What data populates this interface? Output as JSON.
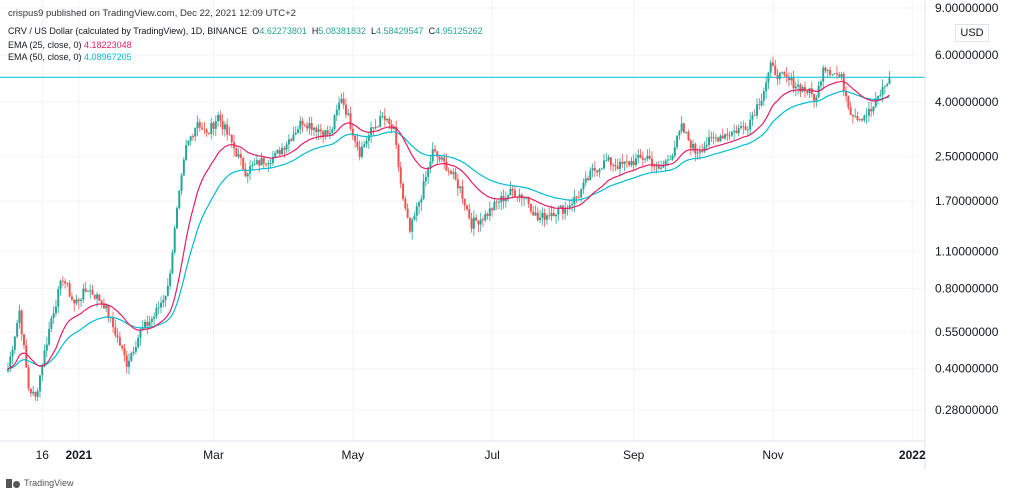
{
  "header": {
    "published": "crispus9 published on TradingView.com, Dec 22, 2021 12:09 UTC+2",
    "symbol_line": "CRV / US Dollar (calculated by TradingView), 1D, BINANCE",
    "ohlc": {
      "o_label": "O",
      "o": "4.62273801",
      "h_label": "H",
      "h": "5.08381832",
      "l_label": "L",
      "l": "4.58429547",
      "c_label": "C",
      "c": "4.95125262"
    },
    "ema25_label": "EMA (25, close, 0)",
    "ema25_value": "4.18223048",
    "ema50_label": "EMA (50, close, 0)",
    "ema50_value": "4.08967205"
  },
  "axis": {
    "currency": "USD"
  },
  "footer": {
    "brand": "TradingView"
  },
  "colors": {
    "up": "#26a69a",
    "down": "#ef5350",
    "ema25": "#e91e63",
    "ema50": "#00bcd4",
    "grid": "#f0f3fa"
  },
  "chart_data": {
    "type": "candlestick",
    "y_scale": "log",
    "ylim": [
      0.22,
      9.0
    ],
    "y_ticks": [
      {
        "value": 9.0,
        "label": "9.00000000"
      },
      {
        "value": 6.0,
        "label": "6.00000000"
      },
      {
        "value": 4.0,
        "label": "4.00000000"
      },
      {
        "value": 2.5,
        "label": "2.50000000"
      },
      {
        "value": 1.7,
        "label": "1.70000000"
      },
      {
        "value": 1.1,
        "label": "1.10000000"
      },
      {
        "value": 0.8,
        "label": "0.80000000"
      },
      {
        "value": 0.55,
        "label": "0.55000000"
      },
      {
        "value": 0.4,
        "label": "0.40000000"
      },
      {
        "value": 0.28,
        "label": "0.28000000"
      }
    ],
    "x_range": [
      "2020-12-01",
      "2021-12-31"
    ],
    "x_ticks": [
      {
        "date": "2020-12-16",
        "label": "16"
      },
      {
        "date": "2021-01-01",
        "label": "2021"
      },
      {
        "date": "2021-03-01",
        "label": "Mar"
      },
      {
        "date": "2021-05-01",
        "label": "May"
      },
      {
        "date": "2021-07-01",
        "label": "Jul"
      },
      {
        "date": "2021-09-01",
        "label": "Sep"
      },
      {
        "date": "2021-11-01",
        "label": "Nov"
      },
      {
        "date": "2022-01-01",
        "label": "2022"
      }
    ],
    "horizontal_line": 4.95,
    "anchors": [
      {
        "date": "2020-12-01",
        "close": 0.4
      },
      {
        "date": "2020-12-06",
        "close": 0.66
      },
      {
        "date": "2020-12-10",
        "close": 0.34
      },
      {
        "date": "2020-12-13",
        "close": 0.31
      },
      {
        "date": "2020-12-20",
        "close": 0.62
      },
      {
        "date": "2020-12-25",
        "close": 0.88
      },
      {
        "date": "2020-12-30",
        "close": 0.7
      },
      {
        "date": "2021-01-05",
        "close": 0.8
      },
      {
        "date": "2021-01-12",
        "close": 0.7
      },
      {
        "date": "2021-01-18",
        "close": 0.52
      },
      {
        "date": "2021-01-22",
        "close": 0.42
      },
      {
        "date": "2021-01-28",
        "close": 0.55
      },
      {
        "date": "2021-02-03",
        "close": 0.63
      },
      {
        "date": "2021-02-09",
        "close": 0.8
      },
      {
        "date": "2021-02-13",
        "close": 1.55
      },
      {
        "date": "2021-02-17",
        "close": 2.7
      },
      {
        "date": "2021-02-22",
        "close": 3.4
      },
      {
        "date": "2021-02-26",
        "close": 3.0
      },
      {
        "date": "2021-03-03",
        "close": 3.55
      },
      {
        "date": "2021-03-09",
        "close": 2.8
      },
      {
        "date": "2021-03-15",
        "close": 2.2
      },
      {
        "date": "2021-03-22",
        "close": 2.4
      },
      {
        "date": "2021-03-28",
        "close": 2.5
      },
      {
        "date": "2021-04-03",
        "close": 2.9
      },
      {
        "date": "2021-04-09",
        "close": 3.4
      },
      {
        "date": "2021-04-15",
        "close": 3.2
      },
      {
        "date": "2021-04-21",
        "close": 3.0
      },
      {
        "date": "2021-04-26",
        "close": 4.2
      },
      {
        "date": "2021-04-30",
        "close": 3.3
      },
      {
        "date": "2021-05-04",
        "close": 2.6
      },
      {
        "date": "2021-05-09",
        "close": 3.1
      },
      {
        "date": "2021-05-14",
        "close": 3.5
      },
      {
        "date": "2021-05-19",
        "close": 3.1
      },
      {
        "date": "2021-05-23",
        "close": 1.7
      },
      {
        "date": "2021-05-26",
        "close": 1.3
      },
      {
        "date": "2021-05-31",
        "close": 1.8
      },
      {
        "date": "2021-06-05",
        "close": 2.6
      },
      {
        "date": "2021-06-11",
        "close": 2.3
      },
      {
        "date": "2021-06-17",
        "close": 1.9
      },
      {
        "date": "2021-06-22",
        "close": 1.4
      },
      {
        "date": "2021-06-28",
        "close": 1.5
      },
      {
        "date": "2021-07-04",
        "close": 1.7
      },
      {
        "date": "2021-07-10",
        "close": 1.85
      },
      {
        "date": "2021-07-16",
        "close": 1.75
      },
      {
        "date": "2021-07-21",
        "close": 1.45
      },
      {
        "date": "2021-07-27",
        "close": 1.55
      },
      {
        "date": "2021-08-02",
        "close": 1.6
      },
      {
        "date": "2021-08-08",
        "close": 1.8
      },
      {
        "date": "2021-08-14",
        "close": 2.2
      },
      {
        "date": "2021-08-20",
        "close": 2.4
      },
      {
        "date": "2021-08-26",
        "close": 2.3
      },
      {
        "date": "2021-09-01",
        "close": 2.4
      },
      {
        "date": "2021-09-07",
        "close": 2.5
      },
      {
        "date": "2021-09-12",
        "close": 2.2
      },
      {
        "date": "2021-09-18",
        "close": 2.6
      },
      {
        "date": "2021-09-22",
        "close": 3.2
      },
      {
        "date": "2021-09-28",
        "close": 2.6
      },
      {
        "date": "2021-10-03",
        "close": 2.8
      },
      {
        "date": "2021-10-09",
        "close": 3.0
      },
      {
        "date": "2021-10-15",
        "close": 3.1
      },
      {
        "date": "2021-10-21",
        "close": 3.3
      },
      {
        "date": "2021-10-27",
        "close": 4.2
      },
      {
        "date": "2021-10-31",
        "close": 5.4
      },
      {
        "date": "2021-11-04",
        "close": 5.0
      },
      {
        "date": "2021-11-10",
        "close": 4.7
      },
      {
        "date": "2021-11-16",
        "close": 4.4
      },
      {
        "date": "2021-11-20",
        "close": 4.1
      },
      {
        "date": "2021-11-23",
        "close": 5.5
      },
      {
        "date": "2021-11-27",
        "close": 5.2
      },
      {
        "date": "2021-12-01",
        "close": 4.9
      },
      {
        "date": "2021-12-05",
        "close": 3.7
      },
      {
        "date": "2021-12-09",
        "close": 3.5
      },
      {
        "date": "2021-12-14",
        "close": 3.7
      },
      {
        "date": "2021-12-18",
        "close": 4.3
      },
      {
        "date": "2021-12-22",
        "close": 4.95
      }
    ],
    "ema25_last": 4.18,
    "ema50_last": 4.09
  }
}
